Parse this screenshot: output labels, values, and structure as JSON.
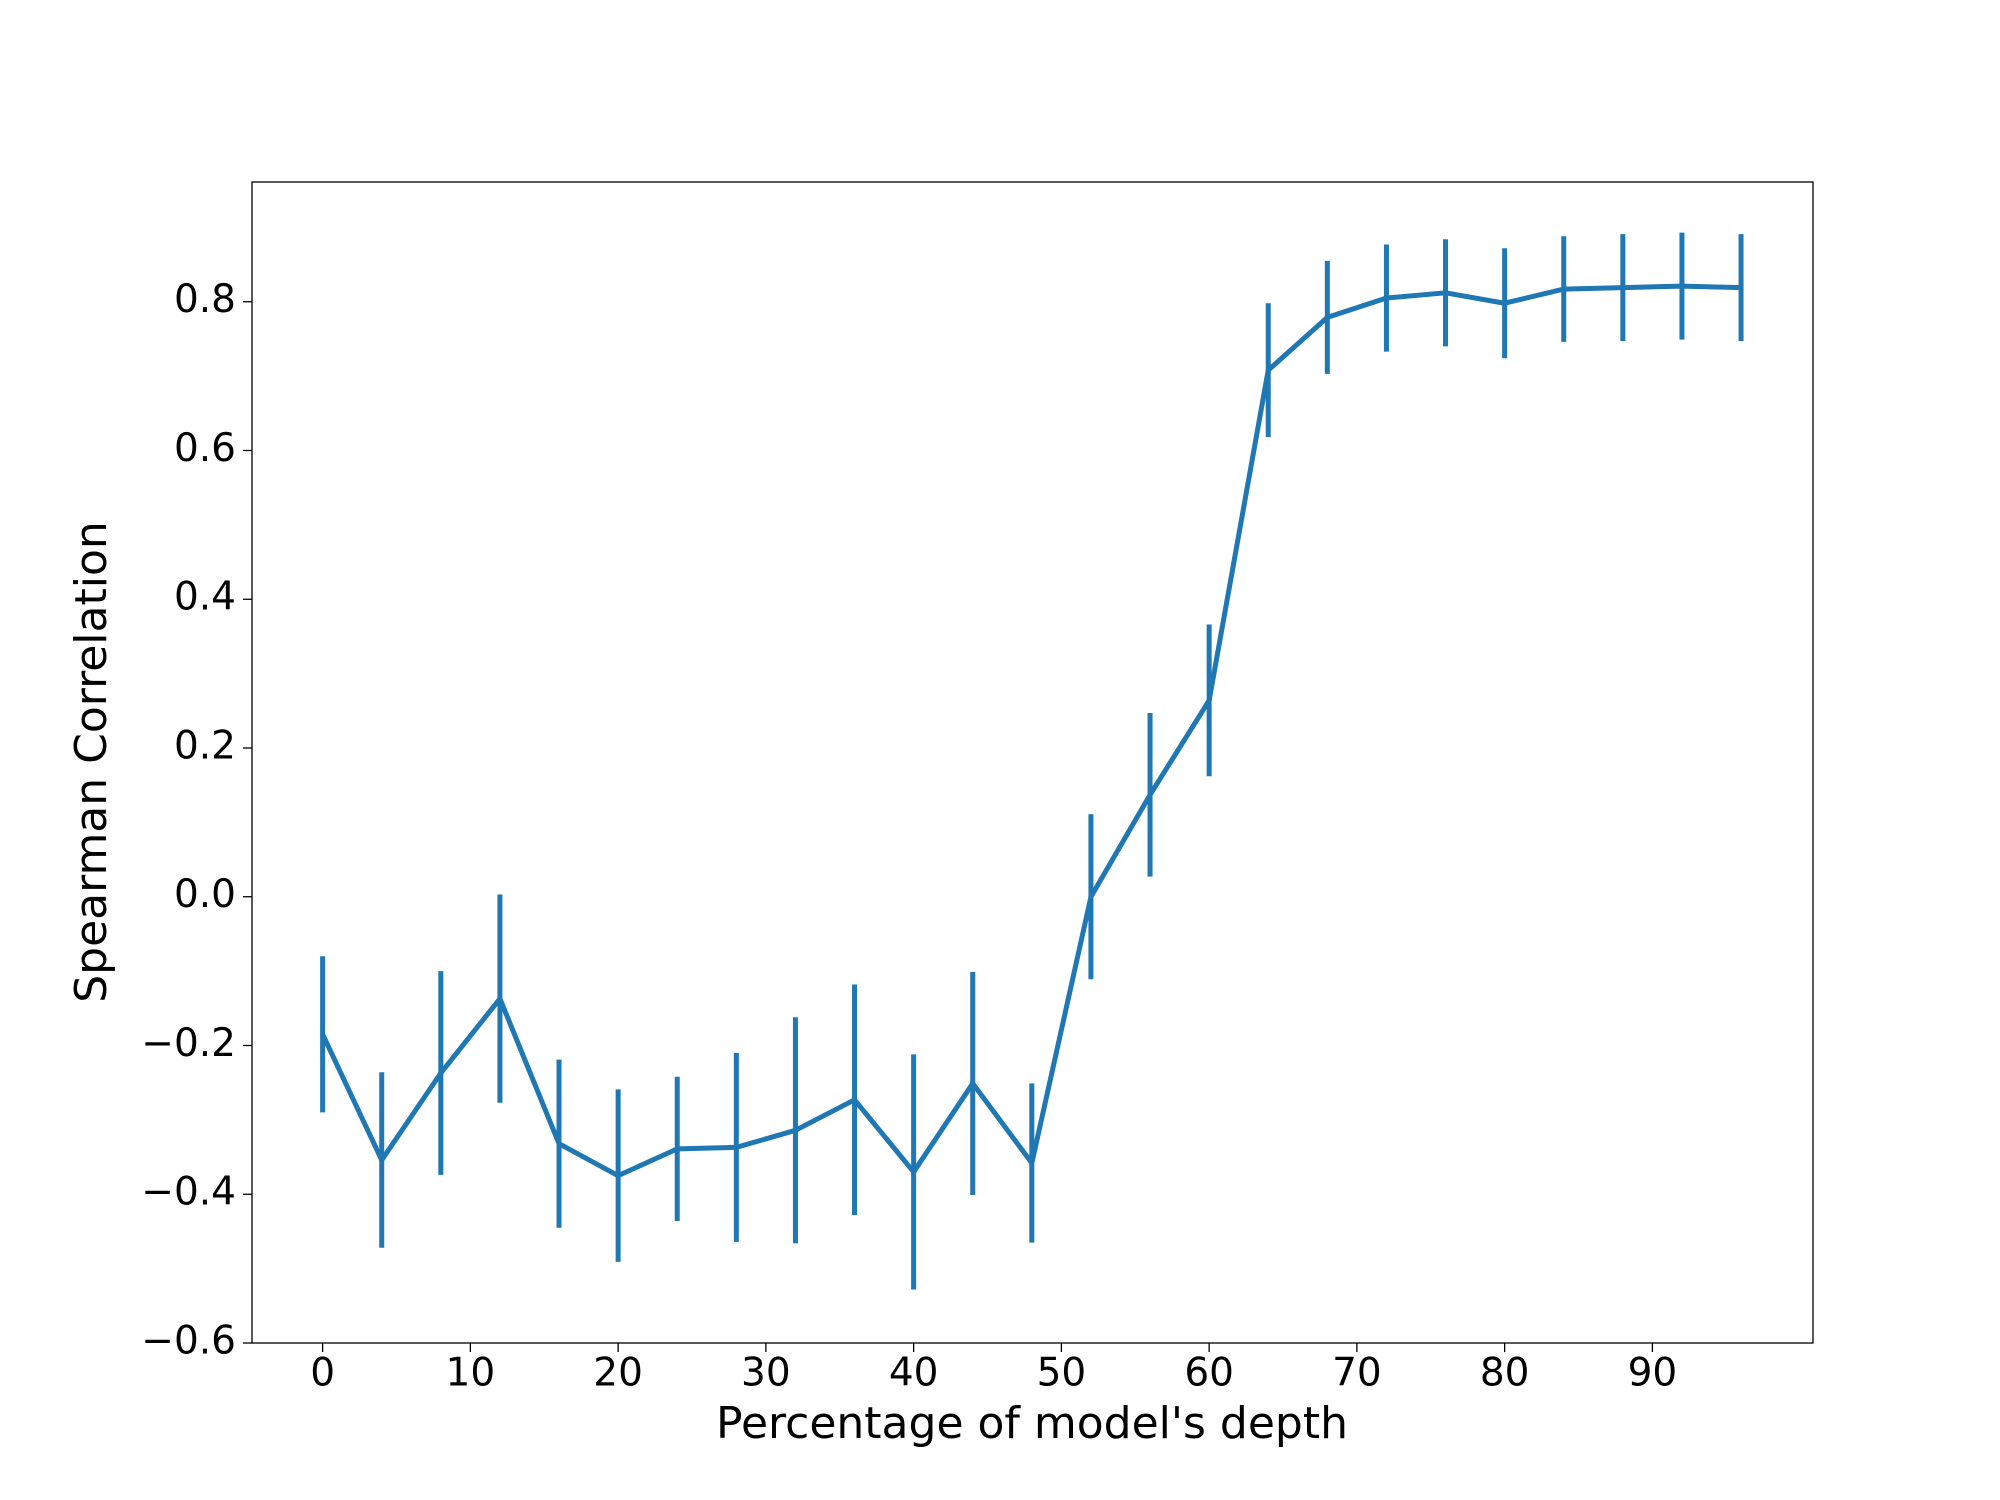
{
  "chart_data": {
    "type": "line",
    "xlabel": "Percentage of model's depth",
    "ylabel": "Spearman Correlation",
    "x": [
      0,
      4,
      8,
      12,
      16,
      20,
      24,
      28,
      32,
      36,
      40,
      44,
      48,
      52,
      56,
      60,
      64,
      68,
      72,
      76,
      80,
      84,
      88,
      92,
      96
    ],
    "series": [
      {
        "color": "#1f77b4",
        "values": [
          -0.185,
          -0.354,
          -0.237,
          -0.137,
          -0.332,
          -0.375,
          -0.339,
          -0.337,
          -0.314,
          -0.273,
          -0.37,
          -0.251,
          -0.358,
          0.0,
          0.137,
          0.264,
          0.708,
          0.779,
          0.805,
          0.812,
          0.798,
          0.817,
          0.819,
          0.821,
          0.819
        ],
        "errors": [
          0.105,
          0.118,
          0.137,
          0.14,
          0.113,
          0.116,
          0.097,
          0.127,
          0.152,
          0.155,
          0.158,
          0.15,
          0.107,
          0.111,
          0.11,
          0.102,
          0.09,
          0.076,
          0.072,
          0.072,
          0.074,
          0.071,
          0.072,
          0.072,
          0.072
        ]
      }
    ],
    "xlim": [
      -4.78,
      100.87
    ],
    "ylim": [
      -0.6,
      0.961
    ],
    "xticks": [
      0,
      10,
      20,
      30,
      40,
      50,
      60,
      70,
      80,
      90
    ],
    "yticks": [
      {
        "value": -0.6,
        "label": "−0.6"
      },
      {
        "value": -0.4,
        "label": "−0.4"
      },
      {
        "value": -0.2,
        "label": "−0.2"
      },
      {
        "value": 0,
        "label": "0.0"
      },
      {
        "value": 0.2,
        "label": "0.2"
      },
      {
        "value": 0.4,
        "label": "0.4"
      },
      {
        "value": 0.6,
        "label": "0.6"
      },
      {
        "value": 0.8,
        "label": "0.8"
      }
    ],
    "grid": false
  }
}
